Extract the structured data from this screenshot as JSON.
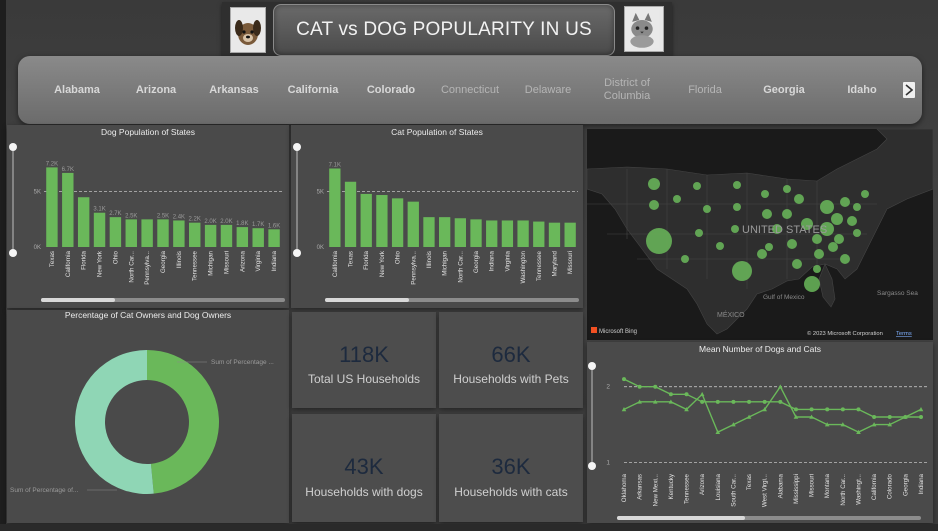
{
  "header": {
    "title": "CAT vs DOG POPULARITY IN  US",
    "left_icon": "dog-icon",
    "right_icon": "cat-icon"
  },
  "slicer": {
    "states": [
      "Alabama",
      "Arizona",
      "Arkansas",
      "California",
      "Colorado",
      "Connecticut",
      "Delaware",
      "District of Columbia",
      "Florida",
      "Georgia",
      "Idaho"
    ],
    "next_icon": "chevron-right-icon"
  },
  "colors": {
    "bar": "#6ab85a",
    "donut_dark": "#6ab85a",
    "donut_light": "#8fd6b5",
    "kpi_value": "#1d2a3e"
  },
  "chart_data": [
    {
      "type": "bar",
      "title": "Dog Population of States",
      "categories": [
        "Texas",
        "California",
        "Florida",
        "New York",
        "Ohio",
        "North Car...",
        "Pennsylva...",
        "Georgia",
        "Illinois",
        "Tennessee",
        "Michigan",
        "Missouri",
        "Arizona",
        "Virginia",
        "Indiana"
      ],
      "values": [
        7200,
        6700,
        4500,
        3100,
        2700,
        2500,
        2500,
        2500,
        2400,
        2200,
        2000,
        2000,
        1800,
        1700,
        1600
      ],
      "data_labels": [
        "7.2K",
        "6.7K",
        "",
        "3.1K",
        "2.7K",
        "2.5K",
        "",
        "2.5K",
        "2.4K",
        "2.2K",
        "2.0K",
        "2.0K",
        "1.8K",
        "1.7K",
        "1.6K"
      ],
      "y_ticks": [
        "0K",
        "5K"
      ],
      "ylim": [
        0,
        8500
      ]
    },
    {
      "type": "bar",
      "title": "Cat Population of States",
      "categories": [
        "California",
        "Texas",
        "Florida",
        "New York",
        "Ohio",
        "Pennsylva...",
        "Illinois",
        "Michigan",
        "North Car...",
        "Georgia",
        "Indiana",
        "Virginia",
        "Washington",
        "Tennessee",
        "Maryland",
        "Missouri"
      ],
      "values": [
        7100,
        5900,
        4800,
        4700,
        4400,
        4100,
        2700,
        2700,
        2600,
        2500,
        2400,
        2400,
        2400,
        2300,
        2200,
        2200
      ],
      "data_labels": [
        "7.1K",
        "",
        "",
        "",
        "",
        "",
        "",
        "",
        "",
        "",
        "",
        "",
        "",
        "",
        "",
        ""
      ],
      "y_ticks": [
        "0K",
        "5K"
      ],
      "ylim": [
        0,
        8500
      ]
    },
    {
      "type": "pie",
      "title": "Percentage of Cat Owners and Dog Owners",
      "series": [
        {
          "name": "Sum of Percentage ...",
          "value": 48.5
        },
        {
          "name": "Sum of Percentage of...",
          "value": 51.5
        }
      ]
    },
    {
      "type": "line",
      "title": "Mean Number of Dogs and Cats",
      "categories": [
        "Oklahoma",
        "Arkansas",
        "New Mexi...",
        "Kentucky",
        "Tennessee",
        "Arizona",
        "Louisiana",
        "South Car...",
        "Texas",
        "West Virgi...",
        "Alabama",
        "Mississippi",
        "Missouri",
        "Montana",
        "North Car...",
        "Washingt...",
        "California",
        "Colorado",
        "Georgia",
        "Indiana"
      ],
      "series": [
        {
          "values": [
            2.1,
            2.0,
            2.0,
            1.9,
            1.9,
            1.8,
            1.8,
            1.8,
            1.8,
            1.8,
            1.8,
            1.7,
            1.7,
            1.7,
            1.7,
            1.7,
            1.6,
            1.6,
            1.6,
            1.6
          ]
        },
        {
          "values": [
            1.7,
            1.8,
            1.8,
            1.8,
            1.7,
            1.9,
            1.4,
            1.5,
            1.6,
            1.7,
            2.0,
            1.6,
            1.6,
            1.5,
            1.5,
            1.4,
            1.5,
            1.5,
            1.6,
            1.7
          ]
        }
      ],
      "y_ticks": [
        "1",
        "2"
      ],
      "ylim": [
        0.9,
        2.3
      ]
    }
  ],
  "map": {
    "country_label": "UNITED STATES",
    "labels": [
      "Gulf of Mexico",
      "MÉXICO",
      "Sargasso Sea"
    ],
    "attribution": "© 2023 Microsoft Corporation",
    "terms": "Terms",
    "bing": "Microsoft Bing"
  },
  "kpis": [
    {
      "value": "118K",
      "label": "Total US Households"
    },
    {
      "value": "66K",
      "label": "Households with Pets"
    },
    {
      "value": "43K",
      "label": "Households with dogs"
    },
    {
      "value": "36K",
      "label": "Households with cats"
    }
  ]
}
